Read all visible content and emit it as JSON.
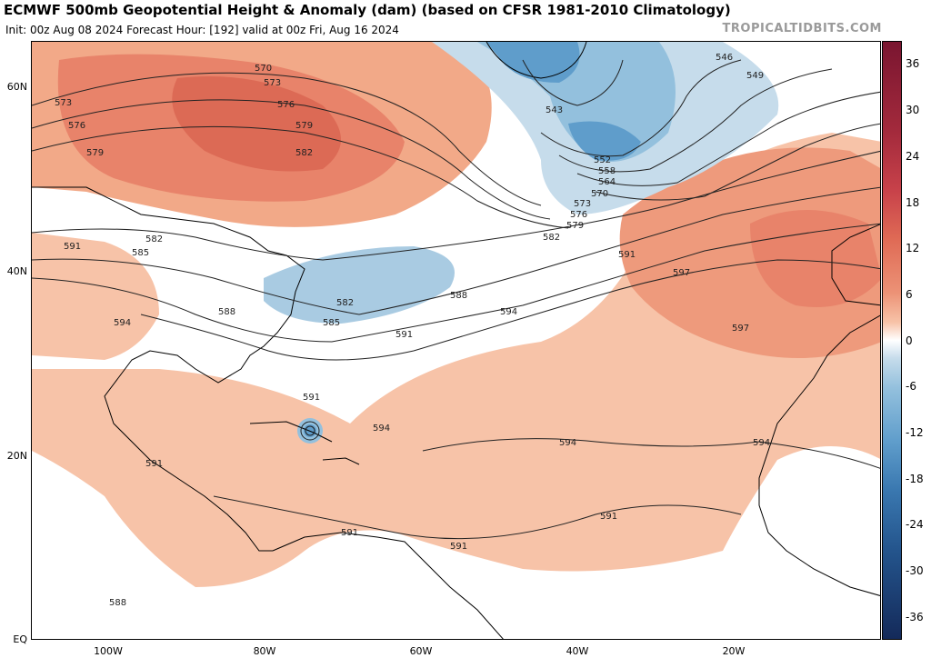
{
  "header": {
    "title": "ECMWF 500mb Geopotential Height & Anomaly (dam) (based on CFSR 1981-2010 Climatology)",
    "subtitle": "Init: 00z Aug 08 2024   Forecast Hour: [192]   valid at 00z Fri, Aug 16 2024",
    "credit": "TROPICALTIDBITS.COM"
  },
  "map": {
    "region": "North Atlantic",
    "lat_labels": [
      "60N",
      "40N",
      "20N",
      "EQ"
    ],
    "lon_labels": [
      "100W",
      "80W",
      "60W",
      "40W",
      "20W"
    ],
    "contour_labels": [
      "570",
      "573",
      "573",
      "576",
      "576",
      "579",
      "579",
      "582",
      "582",
      "585",
      "588",
      "591",
      "591",
      "591",
      "591",
      "594",
      "594",
      "594",
      "594",
      "594",
      "597",
      "597",
      "582",
      "585",
      "588",
      "591",
      "591",
      "591",
      "591",
      "588",
      "543",
      "546",
      "549",
      "552",
      "558",
      "564",
      "570",
      "573",
      "576",
      "579",
      "582"
    ]
  },
  "colorbar": {
    "labels": [
      "36",
      "30",
      "24",
      "18",
      "12",
      "6",
      "0",
      "-6",
      "-12",
      "-18",
      "-24",
      "-30",
      "-36"
    ],
    "colors": {
      "36": "#7a1530",
      "30": "#a32a3c",
      "24": "#c8424a",
      "18": "#df6a55",
      "12": "#ec9276",
      "6": "#f7c3a8",
      "0": "#ffffff",
      "-6": "#c6dceb",
      "-12": "#93c0dd",
      "-18": "#5f9dcb",
      "-24": "#3a78b0",
      "-30": "#24558d",
      "-36": "#142a5a"
    }
  }
}
